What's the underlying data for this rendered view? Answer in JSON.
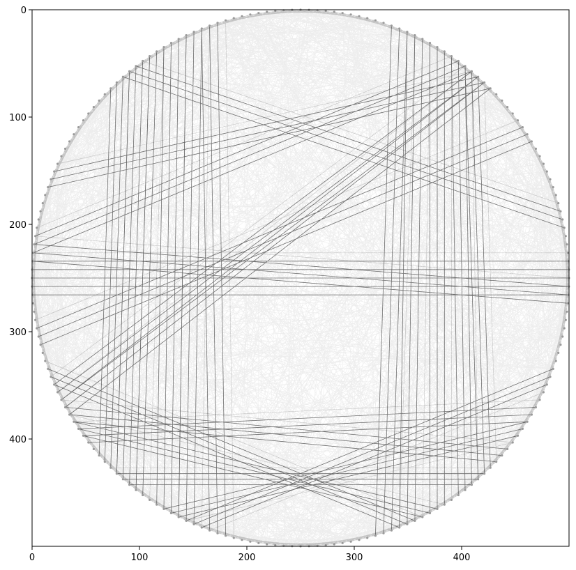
{
  "chart_data": {
    "type": "heatmap",
    "title": "",
    "xlabel": "",
    "ylabel": "",
    "xlim": [
      0,
      500
    ],
    "ylim": [
      500,
      0
    ],
    "y_axis_inverted": true,
    "grid": false,
    "x_ticks": [
      0,
      100,
      200,
      300,
      400
    ],
    "y_ticks": [
      0,
      100,
      200,
      300,
      400
    ],
    "colormap": "gray",
    "image_description": "Circular string-art (thread art) rendering of a face with shoulder-length hair; dark thread chords between nails arranged on a circle",
    "circle_center": [
      250,
      250
    ],
    "circle_radius": 250,
    "nail_count": 200,
    "colors": {
      "thread": "#000000",
      "background": "#ffffff",
      "nail": "#9a9a9a",
      "axes": "#000000"
    }
  }
}
